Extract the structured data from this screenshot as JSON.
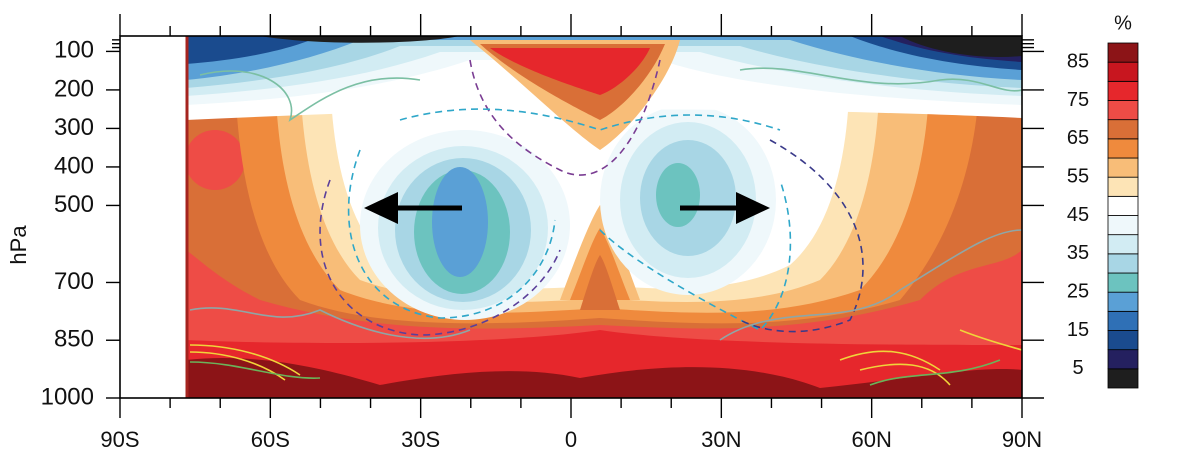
{
  "chart_data": {
    "type": "contour",
    "xlim": [
      -90,
      90
    ],
    "ylim": [
      1000,
      60
    ],
    "xticks": [
      {
        "value": -90,
        "label": "90S"
      },
      {
        "value": -60,
        "label": "60S"
      },
      {
        "value": -30,
        "label": "30S"
      },
      0,
      {
        "value": 30,
        "label": "30N"
      },
      {
        "value": 60,
        "label": "60N"
      },
      {
        "value": 90,
        "label": "90N"
      }
    ],
    "xminorticks": [
      -80,
      -70,
      -50,
      -40,
      -20,
      -10,
      10,
      20,
      40,
      50,
      70,
      80
    ],
    "yticks": [
      100,
      200,
      300,
      400,
      500,
      700,
      850,
      1000
    ],
    "yminorticks": [
      70,
      80,
      90
    ],
    "ylabel": "hPa",
    "colorbar": {
      "title": "%",
      "levels": [
        0,
        5,
        10,
        15,
        20,
        25,
        30,
        35,
        40,
        45,
        50,
        55,
        60,
        65,
        70,
        75,
        80,
        85,
        90
      ],
      "colors": [
        "#1e1e1e",
        "#24205f",
        "#1a4b8e",
        "#2f70b6",
        "#5aa0d6",
        "#6cc3bf",
        "#a8d6e5",
        "#d2ecf3",
        "#eff8fb",
        "#ffffff",
        "#fde4b6",
        "#f8bd78",
        "#ef8a3d",
        "#d96f37",
        "#ee4c46",
        "#e6272c",
        "#c8161f",
        "#8c1417"
      ],
      "ticks": [
        5,
        15,
        25,
        35,
        45,
        55,
        65,
        75,
        85
      ]
    }
  }
}
